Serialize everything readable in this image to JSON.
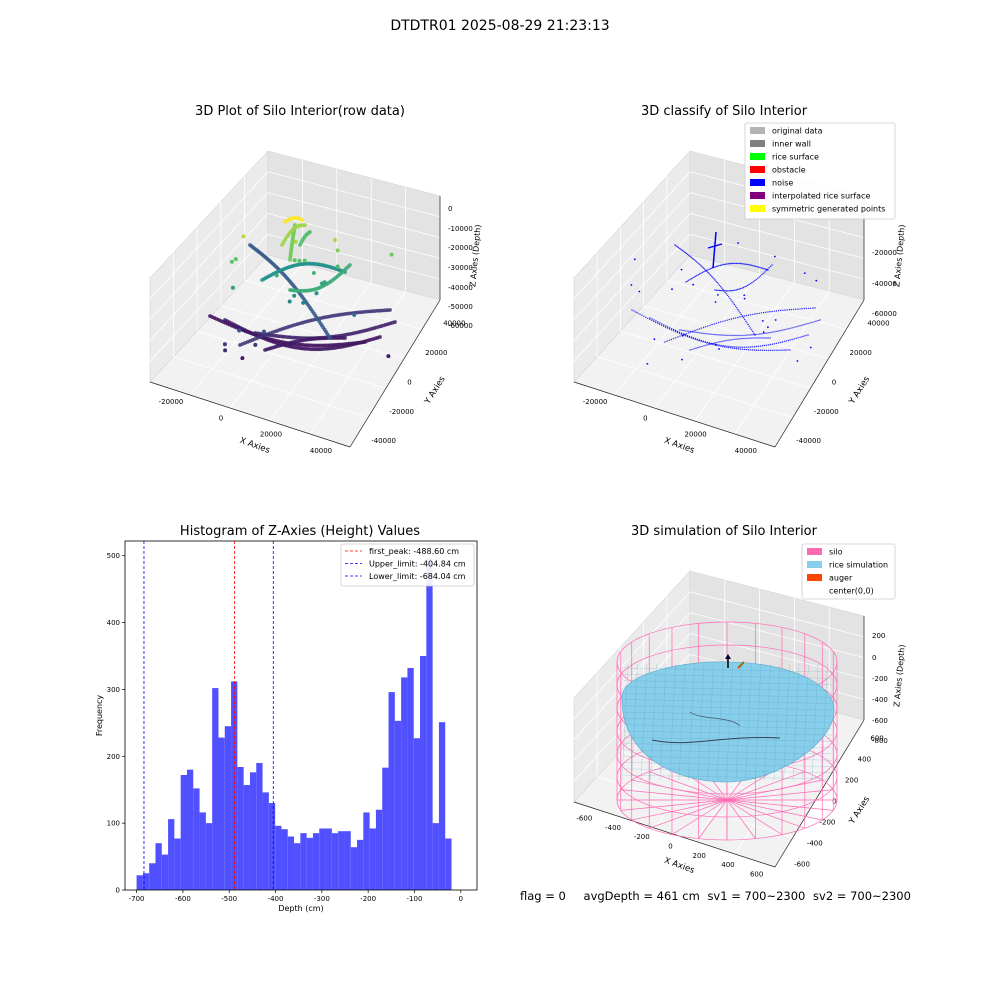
{
  "suptitle": "DTDTR01 2025-08-29 21:23:13",
  "status_line": {
    "flag": "flag = 0",
    "avg_depth": "avgDepth = 461 cm",
    "sv1": "sv1 = 700~2300",
    "sv2": "sv2 = 700~2300"
  },
  "colors": {
    "hist_bar": "#4d4dff",
    "silo": "#ff69b4",
    "rice_simulation": "#87ceeb",
    "auger": "#ff4500",
    "noise": "#0000ff",
    "original_data": "#b3b3b3",
    "inner_wall": "#808080",
    "rice_surface": "#00ff00",
    "obstacle": "#ff0000",
    "interpolated_rice_surface": "#800080",
    "symmetric_generated_points": "#ffff00"
  },
  "chart_data": [
    {
      "type": "scatter3d",
      "title": "3D Plot of Silo Interior(row data)",
      "xlabel": "X Axies",
      "ylabel": "Y Axies",
      "zlabel": "Z Axies (Depth)",
      "x_ticks": [
        "-20000",
        "0",
        "20000",
        "40000"
      ],
      "y_ticks": [
        "-40000",
        "-20000",
        "0",
        "20000",
        "40000"
      ],
      "z_ticks": [
        "0",
        "-10000",
        "-20000",
        "-30000",
        "-40000",
        "-50000",
        "-60000"
      ],
      "xlim": [
        -35000,
        50000
      ],
      "ylim": [
        -45000,
        45000
      ],
      "zlim": [
        -68000,
        3000
      ],
      "colormap": "viridis"
    },
    {
      "type": "scatter3d",
      "title": "3D classify of Silo Interior",
      "xlabel": "X Axies",
      "ylabel": "Y Axies",
      "zlabel": "Z Axies (Depth)",
      "x_ticks": [
        "-20000",
        "0",
        "20000",
        "40000"
      ],
      "y_ticks": [
        "-40000",
        "-20000",
        "0",
        "20000",
        "40000"
      ],
      "z_ticks": [
        "-20000",
        "-40000",
        "-60000"
      ],
      "xlim": [
        -35000,
        50000
      ],
      "ylim": [
        -45000,
        45000
      ],
      "zlim": [
        -68000,
        3000
      ],
      "legend_position": "upper right",
      "legend": [
        {
          "label": "original data",
          "color": "#b3b3b3"
        },
        {
          "label": "inner wall",
          "color": "#808080"
        },
        {
          "label": "rice surface",
          "color": "#00ff00"
        },
        {
          "label": "obstacle",
          "color": "#ff0000"
        },
        {
          "label": "noise",
          "color": "#0000ff"
        },
        {
          "label": "interpolated rice surface",
          "color": "#800080"
        },
        {
          "label": "symmetric generated points",
          "color": "#ffff00"
        }
      ]
    },
    {
      "type": "bar",
      "title": "Histogram of Z-Axies (Height) Values",
      "xlabel": "Depth (cm)",
      "ylabel": "Frequency",
      "xlim": [
        -725,
        35
      ],
      "ylim": [
        0,
        522
      ],
      "x_ticks": [
        -700,
        -600,
        -500,
        -400,
        -300,
        -200,
        -100,
        0
      ],
      "y_ticks": [
        0,
        100,
        200,
        300,
        400,
        500
      ],
      "bin_start": -700,
      "bin_width": 13.6,
      "values": [
        22,
        25,
        40,
        70,
        53,
        106,
        77,
        172,
        180,
        152,
        116,
        100,
        302,
        228,
        245,
        312,
        184,
        157,
        176,
        190,
        146,
        130,
        96,
        91,
        80,
        70,
        85,
        78,
        85,
        92,
        92,
        85,
        88,
        88,
        64,
        75,
        116,
        92,
        120,
        183,
        296,
        253,
        318,
        332,
        227,
        350,
        496,
        100,
        251,
        77
      ],
      "vlines": [
        {
          "label": "first_peak: -488.60 cm",
          "x": -488.6,
          "color": "#ff0000"
        },
        {
          "label": "Upper_limit: -404.84 cm",
          "x": -404.84,
          "color": "#0000ff"
        },
        {
          "label": "Lower_limit: -684.04 cm",
          "x": -684.04,
          "color": "#0000ff"
        }
      ],
      "legend_position": "upper right"
    },
    {
      "type": "surface3d",
      "title": "3D simulation of Silo Interior",
      "xlabel": "X Axies",
      "ylabel": "Y Axies",
      "zlabel": "Z Axies (Depth)",
      "x_ticks": [
        "-600",
        "-400",
        "-200",
        "0",
        "200",
        "400",
        "600"
      ],
      "y_ticks": [
        "-600",
        "-400",
        "-200",
        "0",
        "200",
        "400",
        "600"
      ],
      "z_ticks": [
        "200",
        "0",
        "-200",
        "-400",
        "-600",
        "-800"
      ],
      "xlim": [
        -700,
        700
      ],
      "ylim": [
        -700,
        700
      ],
      "zlim": [
        -950,
        350
      ],
      "legend_position": "upper right",
      "legend": [
        {
          "label": "silo",
          "color": "#ff69b4"
        },
        {
          "label": "rice simulation",
          "color": "#87ceeb"
        },
        {
          "label": "auger",
          "color": "#ff4500"
        },
        {
          "label": "center(0,0)",
          "color": ""
        }
      ]
    }
  ]
}
